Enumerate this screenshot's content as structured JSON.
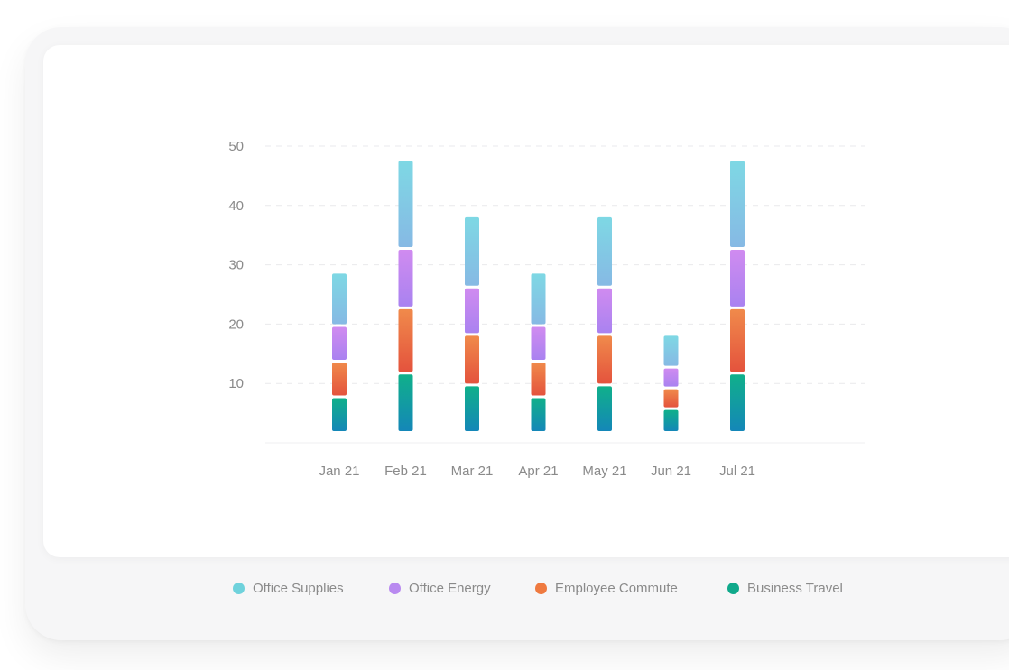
{
  "chart_data": {
    "type": "bar",
    "stacked": true,
    "title": "",
    "xlabel": "",
    "ylabel": "",
    "ylim": [
      0,
      50
    ],
    "yticks": [
      10,
      20,
      30,
      40,
      50
    ],
    "grid": true,
    "legend_position": "bottom",
    "categories": [
      "Jan 21",
      "Feb 21",
      "Mar 21",
      "Apr 21",
      "May 21",
      "Jun 21",
      "Jul 21"
    ],
    "series": [
      {
        "name": "Business Travel",
        "color": "#10b08a",
        "gradient_end": "#1487b8",
        "values": [
          6,
          10,
          8,
          6,
          8,
          4,
          10
        ]
      },
      {
        "name": "Employee Commute",
        "color": "#f08a4b",
        "gradient_end": "#e4533d",
        "values": [
          6,
          11,
          8.5,
          6,
          8.5,
          3.5,
          11
        ]
      },
      {
        "name": "Office Energy",
        "color": "#d08bf0",
        "gradient_end": "#a982f0",
        "values": [
          6,
          10,
          8,
          6,
          8,
          3.5,
          10
        ]
      },
      {
        "name": "Office Supplies",
        "color": "#7ed8e4",
        "gradient_end": "#86b9e4",
        "values": [
          9,
          15,
          12,
          9,
          12,
          5.5,
          15
        ]
      }
    ]
  },
  "legend": {
    "items": [
      {
        "label": "Office Supplies",
        "color": "#6fd2dc"
      },
      {
        "label": "Office Energy",
        "color": "#b98af0"
      },
      {
        "label": "Employee Commute",
        "color": "#ef7a40"
      },
      {
        "label": "Business Travel",
        "color": "#10a98b"
      }
    ]
  }
}
